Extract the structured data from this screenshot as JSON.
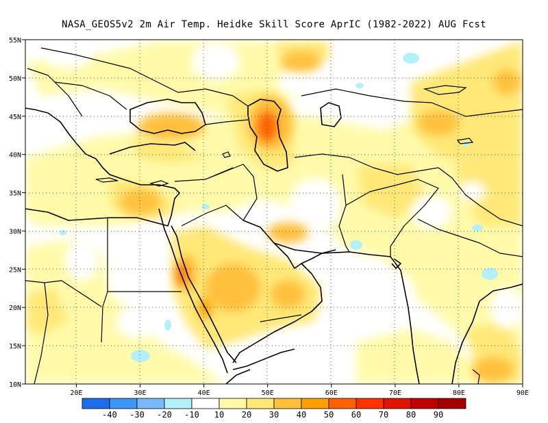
{
  "title": "NASA_GEOS5v2  2m Air Temp. Heidke Skill Score AprIC (1982-2022) AUG Fcst",
  "map": {
    "lon_range": [
      12,
      90
    ],
    "lat_range": [
      10,
      55
    ],
    "lat_ticks": [
      {
        "value": 55,
        "label": "55N"
      },
      {
        "value": 50,
        "label": "50N"
      },
      {
        "value": 45,
        "label": "45N"
      },
      {
        "value": 40,
        "label": "40N"
      },
      {
        "value": 35,
        "label": "35N"
      },
      {
        "value": 30,
        "label": "30N"
      },
      {
        "value": 25,
        "label": "25N"
      },
      {
        "value": 20,
        "label": "20N"
      },
      {
        "value": 15,
        "label": "15N"
      },
      {
        "value": 10,
        "label": "10N"
      }
    ],
    "lon_ticks": [
      {
        "value": 20,
        "label": "20E"
      },
      {
        "value": 30,
        "label": "30E"
      },
      {
        "value": 40,
        "label": "40E"
      },
      {
        "value": 50,
        "label": "50E"
      },
      {
        "value": 60,
        "label": "60E"
      },
      {
        "value": 70,
        "label": "70E"
      },
      {
        "value": 80,
        "label": "80E"
      },
      {
        "value": 90,
        "label": "90E"
      }
    ],
    "grid": "dotted"
  },
  "colorbar": {
    "colors": [
      "#1e6eeb",
      "#3c96f5",
      "#78b9fa",
      "#b4f0fa",
      "#ffffff",
      "#fffaaa",
      "#ffe878",
      "#ffc03c",
      "#ffa000",
      "#ff6000",
      "#ff3200",
      "#e11400",
      "#c00000",
      "#a50000"
    ],
    "labels": [
      "-40",
      "-30",
      "-20",
      "-10",
      "10",
      "20",
      "30",
      "40",
      "50",
      "60",
      "70",
      "80",
      "90"
    ]
  }
}
